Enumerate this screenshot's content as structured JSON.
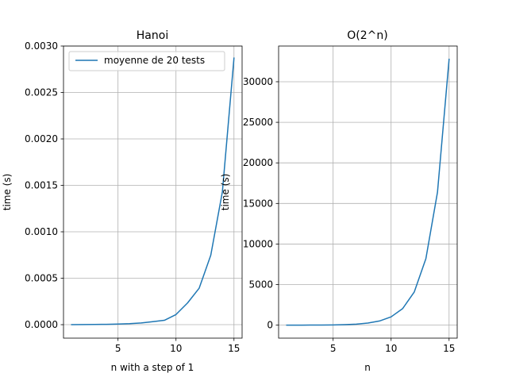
{
  "chart_data": [
    {
      "type": "line",
      "title": "Hanoi",
      "xlabel": "n with a step of 1",
      "ylabel": "time (s)",
      "xlim": [
        0.3,
        15.7
      ],
      "ylim": [
        -0.000145,
        0.003
      ],
      "xticks": [
        5,
        10,
        15
      ],
      "xtick_labels": [
        "5",
        "10",
        "15"
      ],
      "yticks": [
        0,
        0.0005,
        0.001,
        0.0015,
        0.002,
        0.0025,
        0.003
      ],
      "ytick_labels": [
        "0.0000",
        "0.0005",
        "0.0010",
        "0.0015",
        "0.0020",
        "0.0025",
        "0.0030"
      ],
      "grid": true,
      "legend": "upper left",
      "color": "#1f77b4",
      "series": [
        {
          "name": "moyenne de 20 tests",
          "x": [
            1,
            2,
            3,
            4,
            5,
            6,
            7,
            8,
            9,
            10,
            11,
            12,
            13,
            14,
            15
          ],
          "values": [
            8e-07,
            1.5e-06,
            2.5e-06,
            4e-06,
            7e-06,
            1.1e-05,
            1.8e-05,
            3.2e-05,
            4.7e-05,
            0.000109,
            0.000234,
            0.000393,
            0.000748,
            0.00143,
            0.00287
          ]
        }
      ]
    },
    {
      "type": "line",
      "title": "O(2^n)",
      "xlabel": "n",
      "ylabel": "time (s)",
      "xlim": [
        0.3,
        15.7
      ],
      "ylim": [
        -1600,
        34400
      ],
      "xticks": [
        5,
        10,
        15
      ],
      "xtick_labels": [
        "5",
        "10",
        "15"
      ],
      "yticks": [
        0,
        5000,
        10000,
        15000,
        20000,
        25000,
        30000
      ],
      "ytick_labels": [
        "0",
        "5000",
        "10000",
        "15000",
        "20000",
        "25000",
        "30000"
      ],
      "grid": true,
      "legend": "none",
      "color": "#1f77b4",
      "series": [
        {
          "x": [
            1,
            2,
            3,
            4,
            5,
            6,
            7,
            8,
            9,
            10,
            11,
            12,
            13,
            14,
            15
          ],
          "values": [
            2,
            4,
            8,
            16,
            32,
            64,
            128,
            256,
            512,
            1024,
            2048,
            4096,
            8192,
            16384,
            32768
          ]
        }
      ]
    }
  ]
}
